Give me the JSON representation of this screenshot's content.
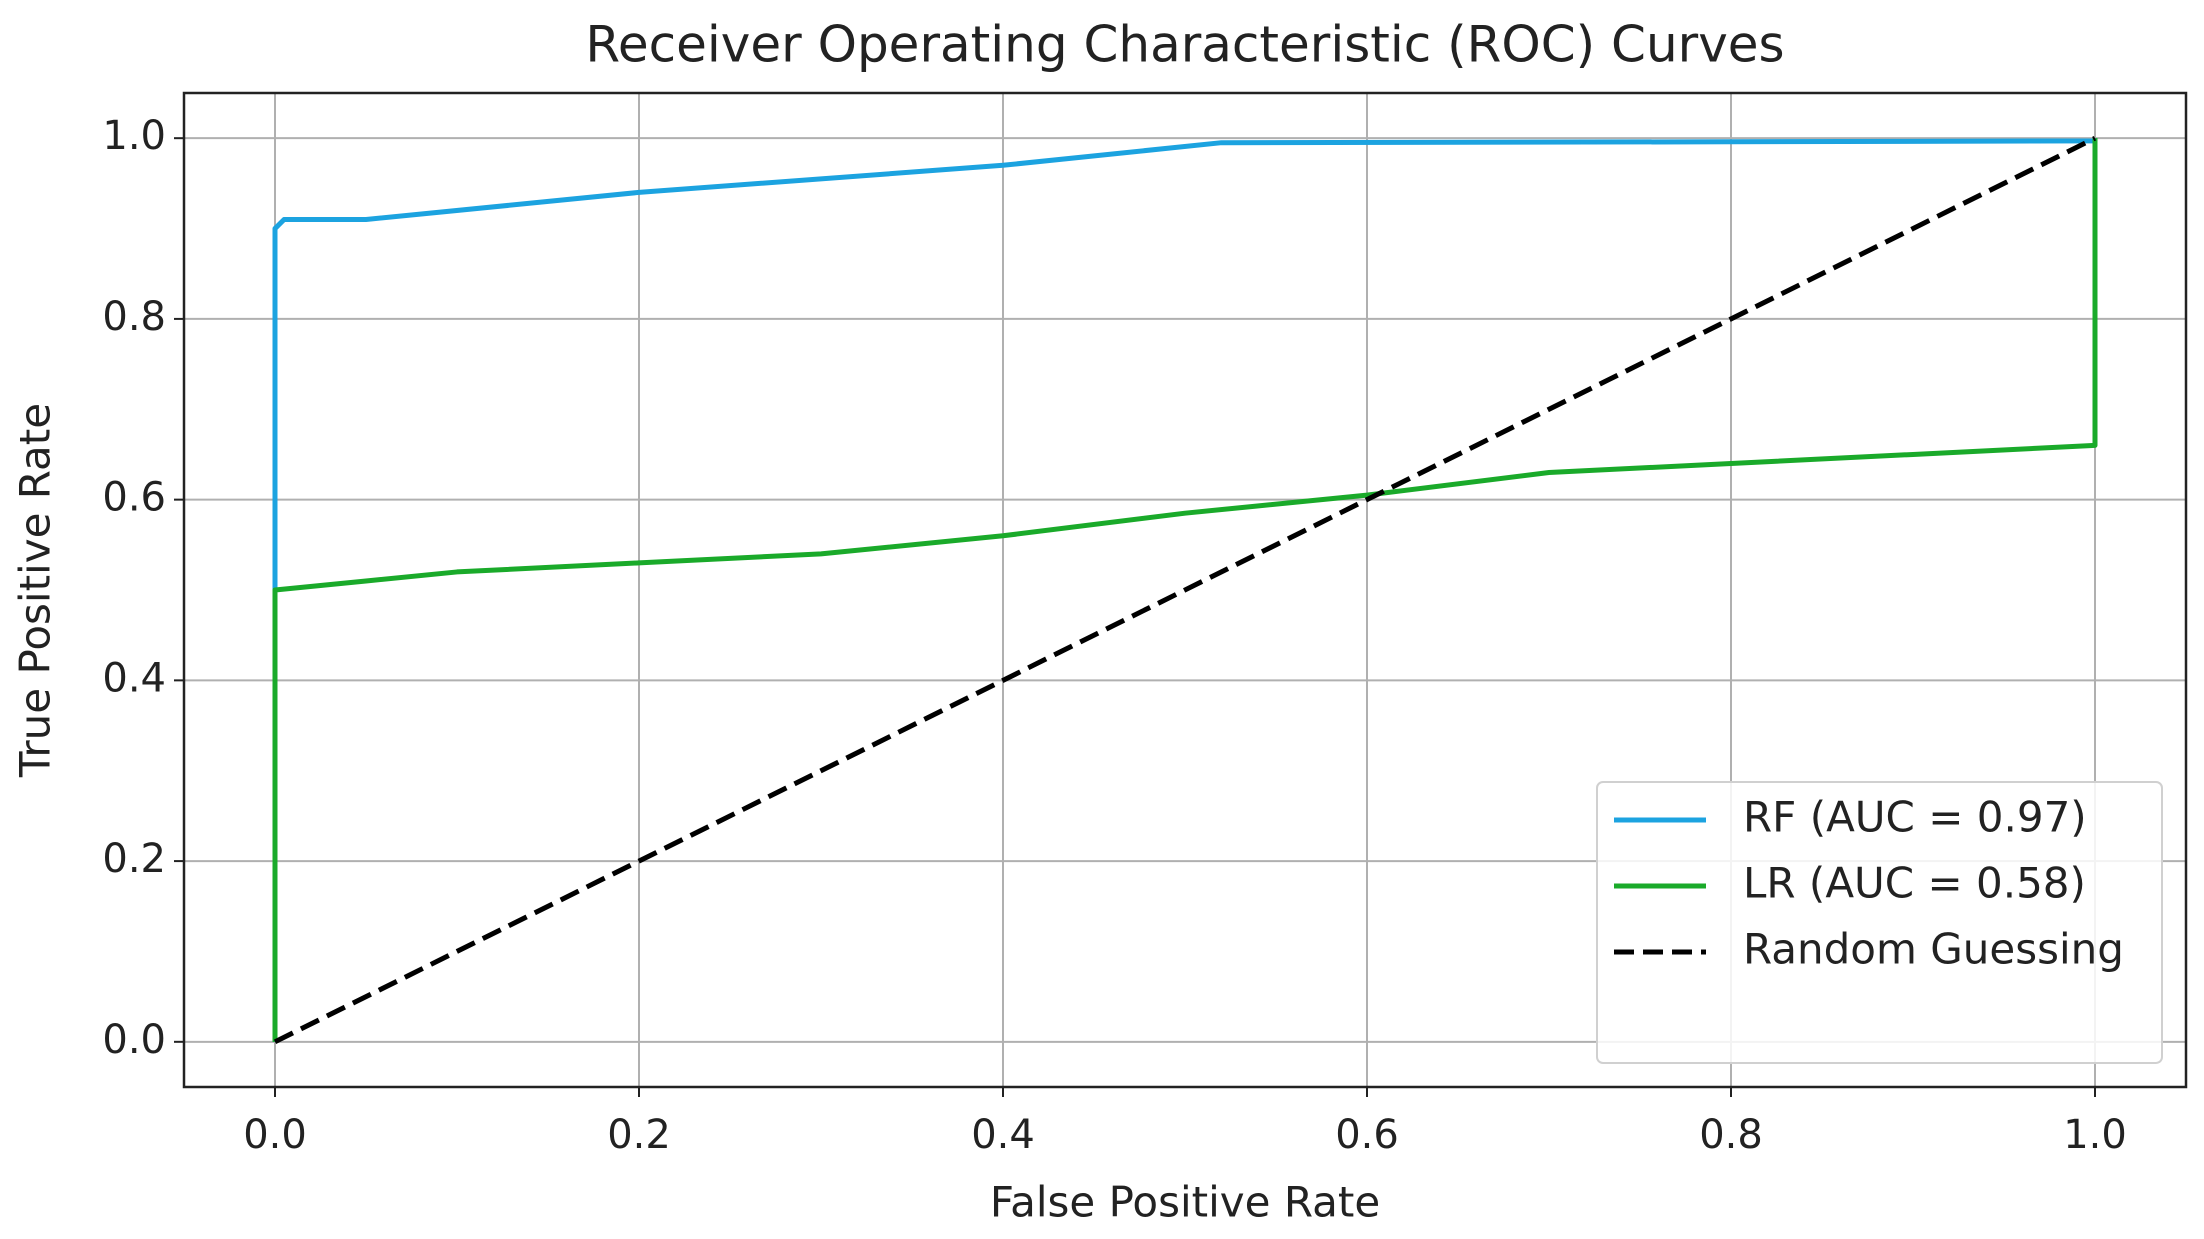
{
  "chart_data": {
    "type": "line",
    "title": "Receiver Operating Characteristic (ROC) Curves",
    "xlabel": "False Positive Rate",
    "ylabel": "True Positive Rate",
    "xlim": [
      -0.05,
      1.05
    ],
    "ylim": [
      -0.05,
      1.05
    ],
    "xticks": [
      {
        "value": 0,
        "label": "0.0"
      },
      0.2,
      0.4,
      0.6,
      0.8,
      {
        "value": 1,
        "label": "1.0"
      }
    ],
    "yticks": [
      {
        "value": 0,
        "label": "0.0"
      },
      0.2,
      0.4,
      0.6,
      0.8,
      {
        "value": 1,
        "label": "1.0"
      }
    ],
    "grid": true,
    "legend": "lower right",
    "series": [
      {
        "name": "RF (AUC = 0.97)",
        "color": "#1ca3e0",
        "linestyle": "solid",
        "x": [
          0,
          0,
          0,
          0.005,
          0.05,
          0.2,
          0.4,
          0.52,
          0.8,
          1,
          1
        ],
        "values": [
          0,
          0.45,
          0.9,
          0.91,
          0.91,
          0.94,
          0.97,
          0.995,
          0.996,
          0.997,
          1
        ]
      },
      {
        "name": "LR (AUC = 0.58)",
        "color": "#1aaa2a",
        "linestyle": "solid",
        "x": [
          0,
          0,
          0.05,
          0.1,
          0.2,
          0.3,
          0.4,
          0.5,
          0.6,
          0.7,
          0.8,
          0.9,
          1,
          1
        ],
        "values": [
          0,
          0.5,
          0.51,
          0.52,
          0.53,
          0.54,
          0.56,
          0.585,
          0.605,
          0.63,
          0.64,
          0.65,
          0.66,
          1
        ]
      },
      {
        "name": "Random Guessing",
        "color": "#000000",
        "linestyle": "dashed",
        "x": [
          0,
          1
        ],
        "values": [
          0,
          1
        ]
      }
    ]
  }
}
